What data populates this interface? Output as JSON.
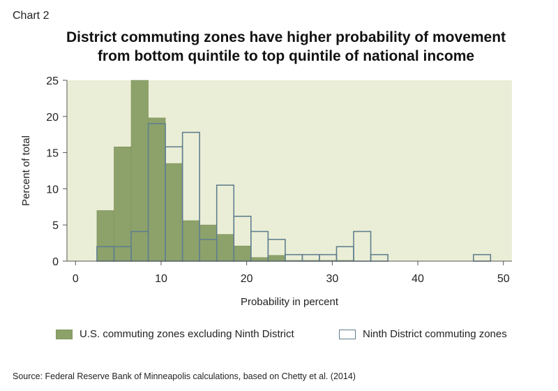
{
  "header": {
    "chart_label": "Chart 2",
    "title_line1": "District commuting zones have higher probability of movement",
    "title_line2": "from bottom quintile to top quintile of national income"
  },
  "source": "Source: Federal Reserve Bank of Minneapolis calculations, based on Chetty et al. (2014)",
  "colors": {
    "plot_background": "#ebeed6",
    "us_fill": "#8da26a",
    "nd_outline": "#5f7f8f"
  },
  "chart_data": {
    "type": "bar",
    "subtype": "overlaid histogram",
    "title": "District commuting zones have higher probability of movement from bottom quintile to top quintile of national income",
    "xlabel": "Probability in percent",
    "ylabel": "Percent of total",
    "xlim": [
      -1,
      51
    ],
    "ylim": [
      0,
      25
    ],
    "xticks": [
      0,
      10,
      20,
      30,
      40,
      50
    ],
    "yticks": [
      0,
      5,
      10,
      15,
      20,
      25
    ],
    "bin_width": 2,
    "bin_starts": [
      2.5,
      4.5,
      6.5,
      8.5,
      10.5,
      12.5,
      14.5,
      16.5,
      18.5,
      20.5,
      22.5,
      24.5,
      26.5,
      28.5,
      30.5,
      32.5,
      34.5,
      36.5,
      38.5,
      40.5,
      42.5,
      44.5,
      46.5
    ],
    "series": [
      {
        "name": "U.S. commuting zones excluding Ninth District",
        "style": "filled",
        "values": [
          7.0,
          15.8,
          25.0,
          19.8,
          13.5,
          5.6,
          5.0,
          3.7,
          2.1,
          0.5,
          0.8,
          0.1,
          0.1,
          0.1,
          0.1,
          0,
          0,
          0,
          0,
          0,
          0,
          0,
          0
        ]
      },
      {
        "name": "Ninth District commuting zones",
        "style": "outline",
        "values": [
          2.0,
          2.0,
          4.1,
          19.0,
          15.8,
          17.8,
          3.0,
          10.5,
          6.2,
          4.1,
          3.0,
          0.9,
          0.9,
          0.9,
          2.0,
          4.1,
          0.9,
          0,
          0,
          0,
          0,
          0,
          0.9
        ]
      }
    ],
    "legend_position": "bottom",
    "grid": false
  }
}
